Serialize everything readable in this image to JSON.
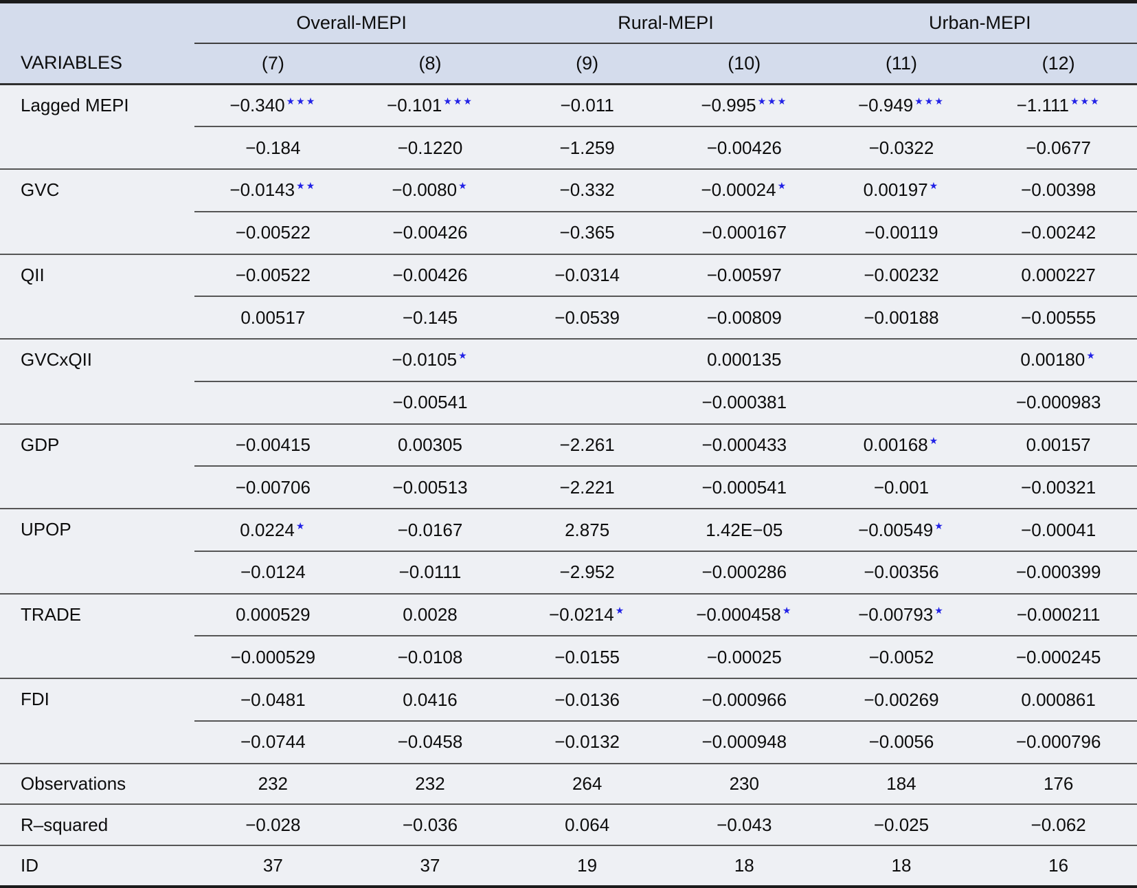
{
  "colors": {
    "header_bg": "#d4dcec",
    "body_bg": "#eef0f4",
    "line": "#555555",
    "heavy_line": "#2e2e2e",
    "frame": "#1b1b1b",
    "star_blue": "#2222e6",
    "text": "#0d0d0d"
  },
  "table": {
    "group_headers": [
      {
        "label": "Overall-MEPI",
        "span": 2
      },
      {
        "label": "Rural-MEPI",
        "span": 2
      },
      {
        "label": "Urban-MEPI",
        "span": 2
      }
    ],
    "column_headers": [
      "VARIABLES",
      "(7)",
      "(8)",
      "(9)",
      "(10)",
      "(11)",
      "(12)"
    ],
    "variables": [
      {
        "name": "Lagged MEPI",
        "coef": [
          {
            "v": "−0.340",
            "stars": "***"
          },
          {
            "v": "−0.101",
            "stars": "***"
          },
          {
            "v": "−0.011",
            "stars": ""
          },
          {
            "v": "−0.995",
            "stars": "***"
          },
          {
            "v": "−0.949",
            "stars": "***"
          },
          {
            "v": "−1.111",
            "stars": "***"
          }
        ],
        "se": [
          "−0.184",
          "−0.1220",
          "−1.259",
          "−0.00426",
          "−0.0322",
          "−0.0677"
        ]
      },
      {
        "name": "GVC",
        "coef": [
          {
            "v": "−0.0143",
            "stars": "**"
          },
          {
            "v": "−0.0080",
            "stars": "*"
          },
          {
            "v": "−0.332",
            "stars": ""
          },
          {
            "v": "−0.00024",
            "stars": "*"
          },
          {
            "v": "0.00197",
            "stars": "*"
          },
          {
            "v": "−0.00398",
            "stars": ""
          }
        ],
        "se": [
          "−0.00522",
          "−0.00426",
          "−0.365",
          "−0.000167",
          "−0.00119",
          "−0.00242"
        ]
      },
      {
        "name": "QII",
        "coef": [
          {
            "v": "−0.00522",
            "stars": ""
          },
          {
            "v": "−0.00426",
            "stars": ""
          },
          {
            "v": "−0.0314",
            "stars": ""
          },
          {
            "v": "−0.00597",
            "stars": ""
          },
          {
            "v": "−0.00232",
            "stars": ""
          },
          {
            "v": "0.000227",
            "stars": ""
          }
        ],
        "se": [
          "0.00517",
          "−0.145",
          "−0.0539",
          "−0.00809",
          "−0.00188",
          "−0.00555"
        ]
      },
      {
        "name": "GVCxQII",
        "coef": [
          {
            "v": "",
            "stars": ""
          },
          {
            "v": "−0.0105",
            "stars": "*"
          },
          {
            "v": "",
            "stars": ""
          },
          {
            "v": "0.000135",
            "stars": ""
          },
          {
            "v": "",
            "stars": ""
          },
          {
            "v": "0.00180",
            "stars": "*"
          }
        ],
        "se": [
          "",
          "−0.00541",
          "",
          "−0.000381",
          "",
          "−0.000983"
        ]
      },
      {
        "name": "GDP",
        "coef": [
          {
            "v": "−0.00415",
            "stars": ""
          },
          {
            "v": "0.00305",
            "stars": ""
          },
          {
            "v": "−2.261",
            "stars": ""
          },
          {
            "v": "−0.000433",
            "stars": ""
          },
          {
            "v": "0.00168",
            "stars": "*"
          },
          {
            "v": "0.00157",
            "stars": ""
          }
        ],
        "se": [
          "−0.00706",
          "−0.00513",
          "−2.221",
          "−0.000541",
          "−0.001",
          "−0.00321"
        ]
      },
      {
        "name": "UPOP",
        "coef": [
          {
            "v": "0.0224",
            "stars": "*"
          },
          {
            "v": "−0.0167",
            "stars": ""
          },
          {
            "v": "2.875",
            "stars": ""
          },
          {
            "v": "1.42E−05",
            "stars": ""
          },
          {
            "v": "−0.00549",
            "stars": "*"
          },
          {
            "v": "−0.00041",
            "stars": ""
          }
        ],
        "se": [
          "−0.0124",
          "−0.0111",
          "−2.952",
          "−0.000286",
          "−0.00356",
          "−0.000399"
        ]
      },
      {
        "name": "TRADE",
        "coef": [
          {
            "v": "0.000529",
            "stars": ""
          },
          {
            "v": "0.0028",
            "stars": ""
          },
          {
            "v": "−0.0214",
            "stars": "*"
          },
          {
            "v": "−0.000458",
            "stars": "*"
          },
          {
            "v": "−0.00793",
            "stars": "*"
          },
          {
            "v": "−0.000211",
            "stars": ""
          }
        ],
        "se": [
          "−0.000529",
          "−0.0108",
          "−0.0155",
          "−0.00025",
          "−0.0052",
          "−0.000245"
        ]
      },
      {
        "name": "FDI",
        "coef": [
          {
            "v": "−0.0481",
            "stars": ""
          },
          {
            "v": "0.0416",
            "stars": ""
          },
          {
            "v": "−0.0136",
            "stars": ""
          },
          {
            "v": "−0.000966",
            "stars": ""
          },
          {
            "v": "−0.00269",
            "stars": ""
          },
          {
            "v": "0.000861",
            "stars": ""
          }
        ],
        "se": [
          "−0.0744",
          "−0.0458",
          "−0.0132",
          "−0.000948",
          "−0.0056",
          "−0.000796"
        ]
      }
    ],
    "summary": [
      {
        "label": "Observations",
        "values": [
          "232",
          "232",
          "264",
          "230",
          "184",
          "176"
        ]
      },
      {
        "label": "R–squared",
        "values": [
          "−0.028",
          "−0.036",
          "0.064",
          "−0.043",
          "−0.025",
          "−0.062"
        ]
      },
      {
        "label": "ID",
        "values": [
          "37",
          "37",
          "19",
          "18",
          "18",
          "16"
        ]
      }
    ]
  }
}
